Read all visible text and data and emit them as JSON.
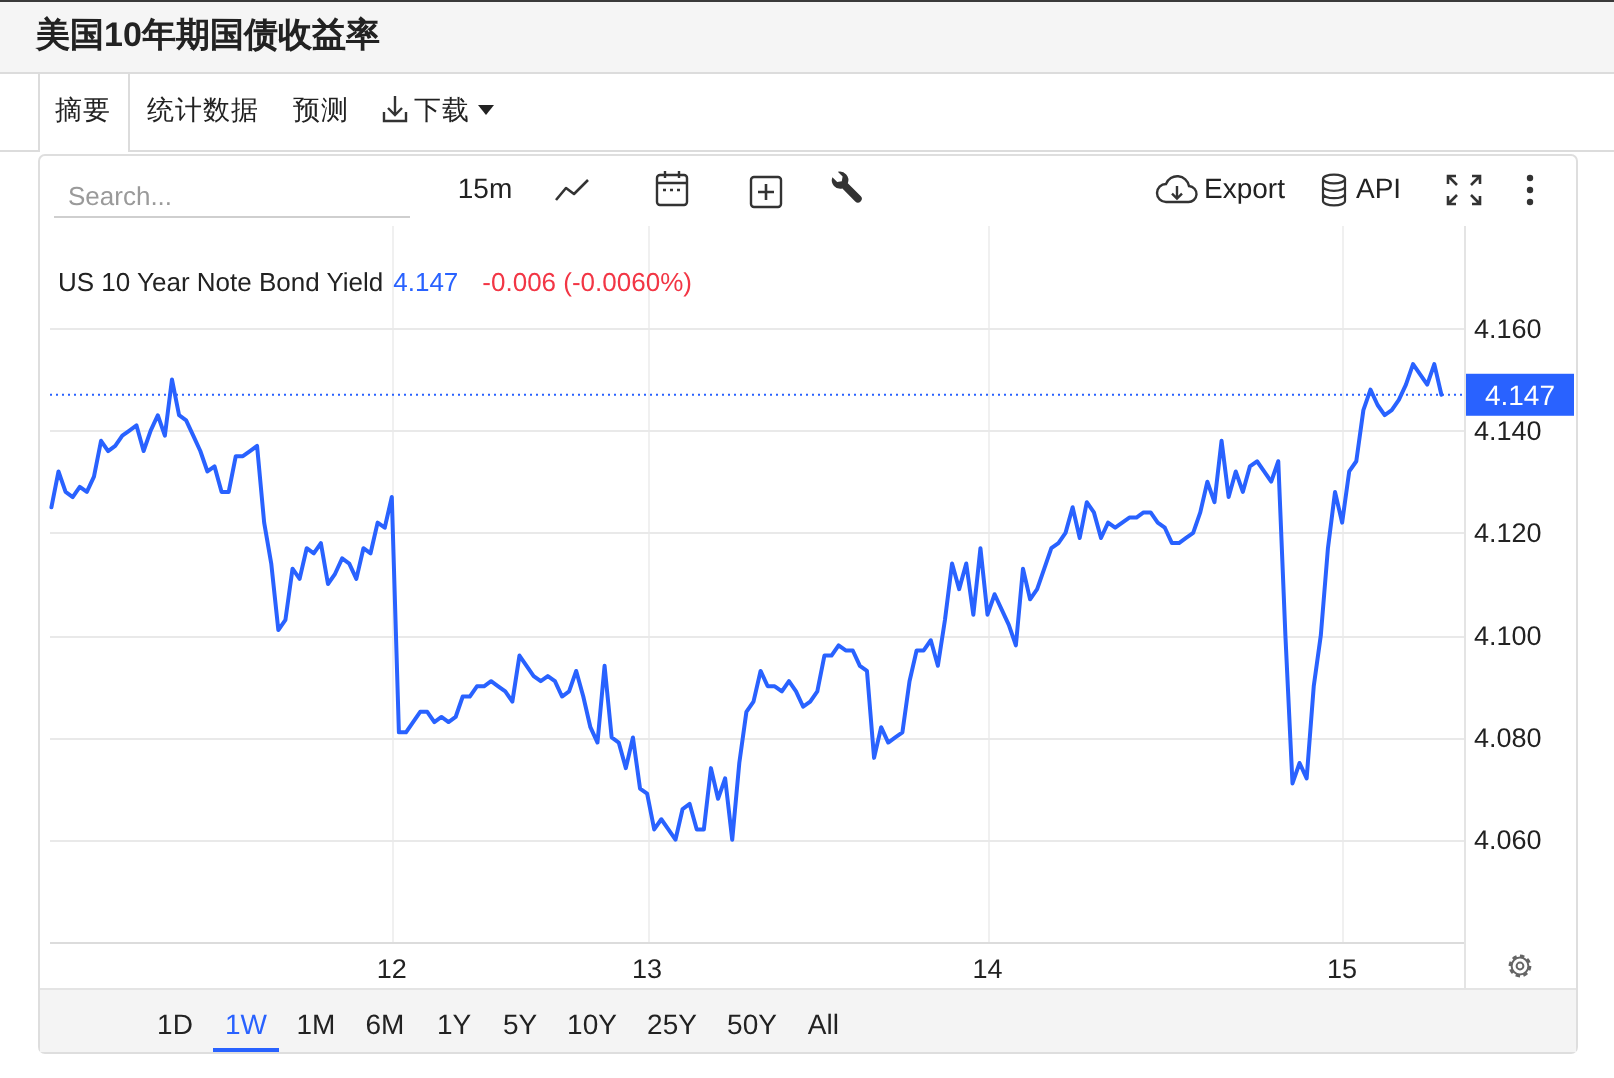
{
  "chart_data": {
    "type": "line",
    "title": "美国10年期国债收益率",
    "subtitle": "US 10 Year Note Bond Yield",
    "categories": [
      null,
      null,
      null,
      null,
      null,
      null,
      null,
      null,
      null,
      null,
      null,
      null,
      null,
      null,
      null,
      null,
      null,
      null,
      null,
      null,
      null,
      null,
      null,
      null,
      null,
      null,
      null,
      null,
      null,
      null,
      null,
      null,
      null,
      null,
      null,
      null,
      null,
      null,
      null,
      null,
      null,
      null,
      null,
      null,
      null,
      null,
      null,
      null,
      "12",
      null,
      null,
      null,
      null,
      null,
      null,
      null,
      null,
      null,
      null,
      null,
      null,
      null,
      null,
      null,
      null,
      null,
      null,
      null,
      null,
      null,
      null,
      null,
      null,
      null,
      null,
      null,
      null,
      null,
      null,
      null,
      null,
      null,
      null,
      null,
      "13",
      null,
      null,
      null,
      null,
      null,
      null,
      null,
      null,
      null,
      null,
      null,
      null,
      null,
      null,
      null,
      null,
      null,
      null,
      null,
      null,
      null,
      null,
      null,
      null,
      null,
      null,
      null,
      null,
      null,
      null,
      null,
      null,
      null,
      null,
      null,
      null,
      null,
      null,
      null,
      null,
      null,
      null,
      null,
      null,
      null,
      null,
      null,
      "14",
      null,
      null,
      null,
      null,
      null,
      null,
      null,
      null,
      null,
      null,
      null,
      null,
      null,
      null,
      null,
      null,
      null,
      null,
      null,
      null,
      null,
      null,
      null,
      null,
      null,
      null,
      null,
      null,
      null,
      null,
      null,
      null,
      null,
      null,
      null,
      null,
      null,
      null,
      null,
      null,
      null,
      null,
      null,
      null,
      null,
      null,
      null,
      null,
      null,
      "15",
      null,
      null,
      null,
      null,
      null,
      null,
      null,
      null,
      null,
      null,
      null,
      null,
      null,
      null
    ],
    "series": [
      {
        "color": "#2962ff",
        "values": [
          4.125,
          4.132,
          4.128,
          4.127,
          4.129,
          4.128,
          4.131,
          4.138,
          4.136,
          4.137,
          4.139,
          4.14,
          4.141,
          4.136,
          4.14,
          4.143,
          4.139,
          4.15,
          4.143,
          4.142,
          4.139,
          4.136,
          4.132,
          4.133,
          4.128,
          4.128,
          4.135,
          4.135,
          4.136,
          4.137,
          4.122,
          4.114,
          4.101,
          4.103,
          4.113,
          4.111,
          4.117,
          4.116,
          4.118,
          4.11,
          4.112,
          4.115,
          4.114,
          4.111,
          4.117,
          4.116,
          4.122,
          4.121,
          4.127,
          4.081,
          4.081,
          4.083,
          4.085,
          4.085,
          4.083,
          4.084,
          4.083,
          4.084,
          4.088,
          4.088,
          4.09,
          4.09,
          4.091,
          4.09,
          4.089,
          4.087,
          4.096,
          4.094,
          4.092,
          4.091,
          4.092,
          4.091,
          4.088,
          4.089,
          4.093,
          4.088,
          4.082,
          4.079,
          4.094,
          4.08,
          4.079,
          4.074,
          4.08,
          4.07,
          4.069,
          4.062,
          4.064,
          4.062,
          4.06,
          4.066,
          4.067,
          4.062,
          4.062,
          4.074,
          4.068,
          4.072,
          4.06,
          4.075,
          4.085,
          4.087,
          4.093,
          4.09,
          4.09,
          4.089,
          4.091,
          4.089,
          4.086,
          4.087,
          4.089,
          4.096,
          4.096,
          4.098,
          4.097,
          4.097,
          4.094,
          4.093,
          4.076,
          4.082,
          4.079,
          4.08,
          4.081,
          4.091,
          4.097,
          4.097,
          4.099,
          4.094,
          4.103,
          4.114,
          4.109,
          4.114,
          4.104,
          4.117,
          4.104,
          4.108,
          4.105,
          4.102,
          4.098,
          4.113,
          4.107,
          4.109,
          4.113,
          4.117,
          4.118,
          4.12,
          4.125,
          4.119,
          4.126,
          4.124,
          4.119,
          4.122,
          4.121,
          4.122,
          4.123,
          4.123,
          4.124,
          4.124,
          4.122,
          4.121,
          4.118,
          4.118,
          4.119,
          4.12,
          4.124,
          4.13,
          4.126,
          4.138,
          4.127,
          4.132,
          4.128,
          4.133,
          4.134,
          4.132,
          4.13,
          4.134,
          4.1,
          4.071,
          4.075,
          4.072,
          4.09,
          4.1,
          4.117,
          4.128,
          4.122,
          4.132,
          4.134,
          4.144,
          4.148,
          4.145,
          4.143,
          4.144,
          4.146,
          4.149,
          4.153,
          4.151,
          4.149,
          4.153,
          4.147
        ]
      }
    ],
    "ylim": [
      4.04,
      4.18
    ],
    "yticks": [
      {
        "value": 4.06,
        "label": "4.060"
      },
      {
        "value": 4.08,
        "label": "4.080"
      },
      {
        "value": 4.1,
        "label": "4.100"
      },
      {
        "value": 4.12,
        "label": "4.120"
      },
      {
        "value": 4.14,
        "label": "4.140"
      },
      {
        "value": 4.16,
        "label": "4.160"
      }
    ],
    "grid": true,
    "ref_lines": [
      {
        "axis": "y",
        "value": 4.147,
        "label": "4.147",
        "color": "#2962ff",
        "line_style": "dotted"
      }
    ],
    "annotations": [
      "摘要",
      "统计数据",
      "预测",
      "下载",
      "Search...",
      "15m",
      "Export",
      "API",
      "4.147",
      "-0.006 (-0.0060%)",
      "1D",
      "1W",
      "1M",
      "6M",
      "1Y",
      "5Y",
      "10Y",
      "25Y",
      "50Y",
      "All"
    ]
  }
}
